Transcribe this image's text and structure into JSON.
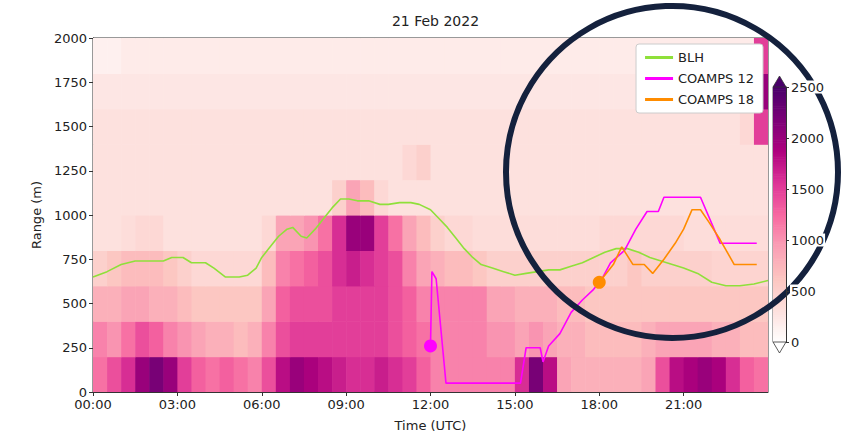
{
  "chart_data": {
    "type": "heatmap",
    "title": "21 Feb 2022",
    "x_label": "Time (UTC)",
    "y_label": "Range (m)",
    "xlim": [
      0,
      24
    ],
    "xticks": [
      {
        "value": 0,
        "label": "00:00"
      },
      {
        "value": 3,
        "label": "03:00"
      },
      {
        "value": 6,
        "label": "06:00"
      },
      {
        "value": 9,
        "label": "09:00"
      },
      {
        "value": 12,
        "label": "12:00"
      },
      {
        "value": 15,
        "label": "15:00"
      },
      {
        "value": 18,
        "label": "18:00"
      },
      {
        "value": 21,
        "label": "21:00"
      }
    ],
    "ylim": [
      0,
      2000
    ],
    "yticks": [
      0,
      250,
      500,
      750,
      1000,
      1250,
      1500,
      1750,
      2000
    ],
    "grid": false,
    "legend": "upper right",
    "heatmap": {
      "x_edges": [
        0,
        0.5,
        1,
        1.5,
        2,
        2.5,
        3,
        3.5,
        4,
        4.5,
        5,
        5.5,
        6,
        6.5,
        7,
        7.5,
        8,
        8.5,
        9,
        9.5,
        10,
        10.5,
        11,
        11.5,
        12,
        12.5,
        13,
        13.5,
        14,
        14.5,
        15,
        15.5,
        16,
        16.5,
        17,
        17.5,
        18,
        18.5,
        19,
        19.5,
        20,
        20.5,
        21,
        21.5,
        22,
        22.5,
        23,
        23.5,
        24
      ],
      "y_edges": [
        0,
        200,
        400,
        600,
        800,
        1000,
        1200,
        1400,
        1600,
        1800,
        2000
      ],
      "cells": [
        [
          1200,
          1400,
          1600,
          2000,
          2200,
          2000,
          1500,
          1300,
          1200,
          1300,
          1200,
          1100,
          1400,
          1800,
          2000,
          1900,
          1800,
          1700,
          1600,
          1600,
          1700,
          1600,
          1500,
          1300,
          1100,
          1100,
          1100,
          1100,
          1100,
          1100,
          1600,
          2200,
          1800,
          900,
          800,
          800,
          800,
          800,
          800,
          900,
          1400,
          1800,
          1900,
          2000,
          1900,
          1600,
          1300,
          1200
        ],
        [
          1100,
          1000,
          1200,
          1400,
          1300,
          1100,
          1000,
          900,
          800,
          800,
          700,
          800,
          1100,
          1400,
          1500,
          1500,
          1500,
          1500,
          1500,
          1500,
          1500,
          1400,
          1300,
          1200,
          1100,
          1100,
          1100,
          1100,
          1000,
          1000,
          900,
          1000,
          900,
          800,
          800,
          700,
          700,
          700,
          700,
          800,
          900,
          900,
          900,
          900,
          800,
          800,
          700,
          700
        ],
        [
          800,
          800,
          900,
          900,
          800,
          800,
          700,
          600,
          600,
          600,
          600,
          600,
          900,
          1300,
          1400,
          1400,
          1400,
          1500,
          1500,
          1500,
          1500,
          1400,
          1300,
          1100,
          1100,
          1100,
          1100,
          1100,
          900,
          900,
          800,
          800,
          800,
          700,
          700,
          600,
          600,
          600,
          600,
          600,
          600,
          600,
          600,
          600,
          600,
          600,
          600,
          600
        ],
        [
          500,
          600,
          700,
          700,
          700,
          600,
          500,
          400,
          400,
          400,
          400,
          400,
          700,
          1100,
          1200,
          1300,
          1400,
          1600,
          1700,
          1600,
          1500,
          1400,
          1100,
          900,
          800,
          700,
          700,
          600,
          500,
          500,
          500,
          500,
          500,
          500,
          500,
          500,
          500,
          500,
          600,
          500,
          500,
          500,
          500,
          500,
          450,
          450,
          450,
          450
        ],
        [
          300,
          300,
          350,
          400,
          400,
          300,
          300,
          300,
          300,
          300,
          300,
          300,
          400,
          900,
          900,
          1000,
          1200,
          1600,
          2000,
          2000,
          1500,
          1200,
          900,
          700,
          500,
          400,
          400,
          350,
          350,
          350,
          350,
          350,
          350,
          350,
          350,
          350,
          400,
          400,
          400,
          400,
          400,
          400,
          350,
          350,
          350,
          350,
          350,
          350
        ],
        [
          300,
          300,
          300,
          300,
          300,
          300,
          300,
          300,
          300,
          300,
          300,
          300,
          300,
          300,
          300,
          300,
          300,
          500,
          900,
          700,
          400,
          300,
          300,
          300,
          300,
          300,
          300,
          300,
          300,
          300,
          300,
          300,
          300,
          300,
          300,
          300,
          300,
          300,
          300,
          300,
          300,
          300,
          300,
          300,
          300,
          300,
          300,
          300
        ],
        [
          300,
          300,
          300,
          300,
          300,
          300,
          300,
          300,
          300,
          300,
          300,
          300,
          300,
          300,
          300,
          300,
          300,
          300,
          300,
          300,
          300,
          300,
          400,
          500,
          300,
          300,
          300,
          300,
          300,
          300,
          300,
          300,
          300,
          300,
          300,
          300,
          300,
          300,
          300,
          300,
          300,
          300,
          300,
          300,
          300,
          300,
          300,
          300
        ],
        [
          300,
          300,
          300,
          300,
          300,
          300,
          300,
          300,
          300,
          300,
          300,
          300,
          300,
          300,
          300,
          300,
          300,
          300,
          300,
          300,
          300,
          300,
          300,
          300,
          300,
          300,
          300,
          300,
          300,
          300,
          300,
          300,
          300,
          300,
          300,
          300,
          300,
          300,
          300,
          300,
          300,
          300,
          300,
          300,
          300,
          300,
          400,
          1500
        ],
        [
          250,
          250,
          250,
          250,
          250,
          250,
          250,
          250,
          250,
          250,
          250,
          250,
          250,
          250,
          250,
          250,
          250,
          250,
          250,
          250,
          250,
          250,
          250,
          250,
          250,
          250,
          250,
          250,
          250,
          250,
          250,
          250,
          250,
          250,
          250,
          250,
          250,
          250,
          250,
          250,
          250,
          250,
          250,
          250,
          250,
          250,
          500,
          2000
        ],
        [
          150,
          150,
          200,
          200,
          200,
          200,
          200,
          200,
          200,
          200,
          200,
          200,
          200,
          200,
          200,
          200,
          200,
          200,
          200,
          200,
          200,
          200,
          200,
          200,
          200,
          200,
          200,
          200,
          200,
          200,
          200,
          200,
          200,
          200,
          200,
          200,
          200,
          200,
          200,
          200,
          200,
          200,
          200,
          200,
          200,
          200,
          200,
          1500
        ]
      ],
      "colorbar_range": [
        0,
        2500
      ],
      "colorbar_ticks": [
        0,
        500,
        1000,
        1500,
        2000,
        2500
      ]
    },
    "series": [
      {
        "name": "BLH",
        "type": "line",
        "color": "#8fe03a",
        "marker": "none",
        "x": [
          0,
          0.5,
          1.0,
          1.5,
          2.0,
          2.5,
          2.8,
          3.2,
          3.5,
          4.0,
          4.3,
          4.7,
          5.2,
          5.5,
          5.8,
          6.0,
          6.3,
          6.6,
          6.9,
          7.1,
          7.4,
          7.6,
          7.9,
          8.2,
          8.5,
          8.8,
          9.1,
          9.4,
          9.8,
          10.2,
          10.5,
          10.9,
          11.3,
          11.6,
          12.0,
          12.3,
          12.6,
          12.9,
          13.2,
          13.5,
          13.8,
          14.2,
          14.6,
          15.0,
          15.4,
          15.8,
          16.2,
          16.6,
          17.0,
          17.4,
          17.8,
          18.2,
          18.6,
          19.0,
          19.4,
          19.8,
          20.2,
          20.6,
          21.0,
          21.5,
          22.0,
          22.5,
          23.0,
          23.5,
          24.0
        ],
        "values": [
          650,
          680,
          720,
          740,
          740,
          740,
          760,
          760,
          730,
          730,
          700,
          650,
          650,
          660,
          700,
          760,
          820,
          880,
          920,
          930,
          880,
          870,
          920,
          980,
          1040,
          1090,
          1090,
          1080,
          1080,
          1060,
          1060,
          1070,
          1070,
          1060,
          1030,
          980,
          930,
          870,
          810,
          760,
          720,
          700,
          680,
          660,
          670,
          680,
          690,
          690,
          710,
          730,
          760,
          790,
          810,
          810,
          790,
          760,
          740,
          720,
          700,
          670,
          620,
          600,
          600,
          610,
          630
        ]
      },
      {
        "name": "COAMPS 12",
        "type": "line",
        "color": "#ff00ff",
        "marker": "circle",
        "x": [
          12.0,
          12.05,
          12.2,
          12.55,
          15.2,
          15.4,
          15.9,
          16.0,
          16.2,
          16.6,
          17.0,
          17.4,
          17.8,
          18.1,
          18.4,
          18.9,
          19.3,
          19.7,
          20.1,
          20.3,
          21.6,
          22.3,
          23.6
        ],
        "values": [
          260,
          680,
          640,
          50,
          50,
          250,
          250,
          170,
          260,
          330,
          450,
          520,
          580,
          640,
          730,
          800,
          920,
          1020,
          1020,
          1100,
          1100,
          840,
          840
        ]
      },
      {
        "name": "COAMPS 18",
        "type": "line",
        "color": "#ff8c00",
        "marker": "circle",
        "x": [
          18.0,
          18.5,
          18.8,
          19.2,
          19.6,
          19.9,
          20.3,
          20.7,
          21.0,
          21.3,
          21.6,
          21.9,
          22.3,
          22.8,
          23.6
        ],
        "values": [
          620,
          720,
          820,
          720,
          720,
          670,
          750,
          840,
          920,
          1030,
          1030,
          960,
          860,
          720,
          720
        ]
      }
    ]
  }
}
